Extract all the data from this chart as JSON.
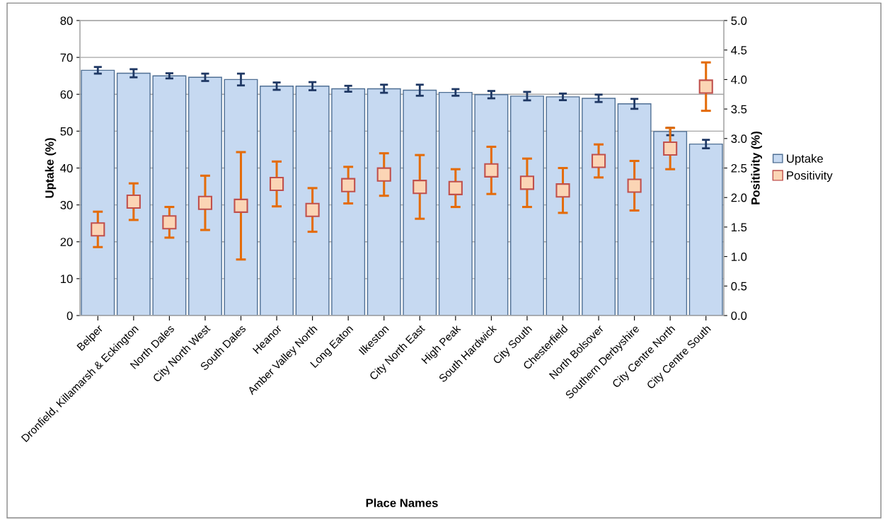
{
  "chart_data": {
    "type": "bar",
    "categories": [
      "Belper",
      "Dronfield, Killamarsh & Eckington",
      "North Dales",
      "City North West",
      "South Dales",
      "Heanor",
      "Amber Valley North",
      "Long Eaton",
      "Ilkeston",
      "City North East",
      "High Peak",
      "South Hardwick",
      "City South",
      "Chesterfield",
      "North Bolsover",
      "Southern Derbyshire",
      "City Centre North",
      "City Centre South"
    ],
    "series": [
      {
        "name": "Uptake",
        "color": "#c6d9f1",
        "values": [
          66.5,
          65.7,
          65.0,
          64.6,
          64.0,
          62.2,
          62.2,
          61.5,
          61.5,
          61.1,
          60.5,
          59.9,
          59.5,
          59.3,
          58.9,
          57.4,
          49.9,
          46.5
        ],
        "errors": [
          0.9,
          1.1,
          0.7,
          1.0,
          1.6,
          1.0,
          1.1,
          0.8,
          1.1,
          1.5,
          0.9,
          1.0,
          1.15,
          0.9,
          1.0,
          1.35,
          1.0,
          1.15
        ]
      },
      {
        "name": "Positivity",
        "type": "scatter",
        "axis": "y2",
        "marker": "square",
        "color": "#fbd5b5",
        "values": [
          1.46,
          1.93,
          1.58,
          1.91,
          1.86,
          2.23,
          1.79,
          2.21,
          2.39,
          2.18,
          2.16,
          2.46,
          2.25,
          2.12,
          2.62,
          2.2,
          2.83,
          3.88
        ],
        "errors": [
          0.3,
          0.31,
          0.26,
          0.46,
          0.91,
          0.38,
          0.37,
          0.31,
          0.36,
          0.54,
          0.32,
          0.4,
          0.41,
          0.38,
          0.28,
          0.42,
          0.35,
          0.41
        ]
      }
    ],
    "xlabel": "Place Names",
    "ylabel": "Uptake (%)",
    "y2label": "Positivity (%)",
    "ylim": [
      0,
      80
    ],
    "yticks": [
      0,
      10,
      20,
      30,
      40,
      50,
      60,
      70,
      80
    ],
    "y2lim": [
      0,
      5
    ],
    "y2ticks": [
      {
        "value": 0,
        "label": "0.0"
      },
      {
        "value": 0.5,
        "label": "0.5"
      },
      {
        "value": 1,
        "label": "1.0"
      },
      {
        "value": 1.5,
        "label": "1.5"
      },
      {
        "value": 2,
        "label": "2.0"
      },
      {
        "value": 2.5,
        "label": "2.5"
      },
      {
        "value": 3,
        "label": "3.0"
      },
      {
        "value": 3.5,
        "label": "3.5"
      },
      {
        "value": 4,
        "label": "4.0"
      },
      {
        "value": 4.5,
        "label": "4.5"
      },
      {
        "value": 5,
        "label": "5.0"
      }
    ],
    "grid": "y",
    "legend": "right"
  }
}
